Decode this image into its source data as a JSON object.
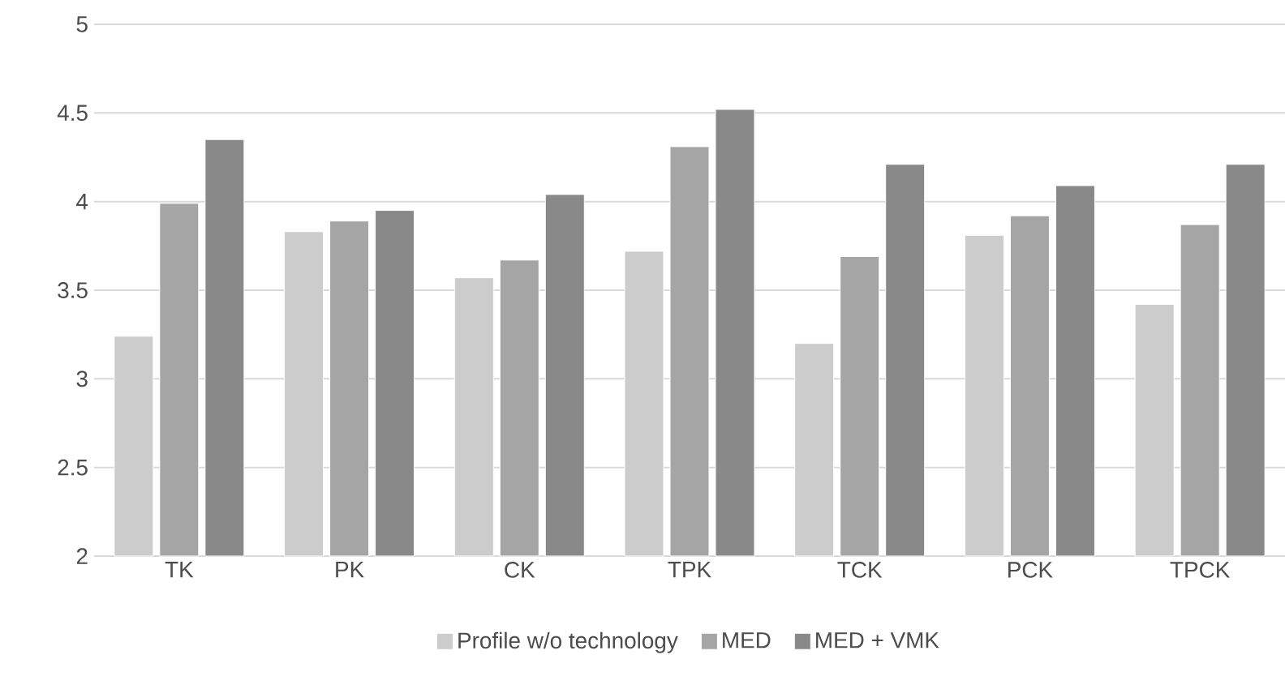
{
  "chart_data": {
    "type": "bar",
    "categories": [
      "TK",
      "PK",
      "CK",
      "TPK",
      "TCK",
      "PCK",
      "TPCK"
    ],
    "series": [
      {
        "name": "Profile w/o technology",
        "color": "#cccccc",
        "values": [
          3.24,
          3.83,
          3.57,
          3.72,
          3.2,
          3.81,
          3.42
        ]
      },
      {
        "name": "MED",
        "color": "#a5a5a5",
        "values": [
          3.99,
          3.89,
          3.67,
          4.31,
          3.69,
          3.92,
          3.87
        ]
      },
      {
        "name": "MED + VMK",
        "color": "#898989",
        "values": [
          4.35,
          3.95,
          4.04,
          4.52,
          4.21,
          4.09,
          4.21
        ]
      }
    ],
    "ylim": [
      2,
      5
    ],
    "yticks": [
      2,
      2.5,
      3,
      3.5,
      4,
      4.5,
      5
    ],
    "grid": "y",
    "legend": "bottom"
  }
}
